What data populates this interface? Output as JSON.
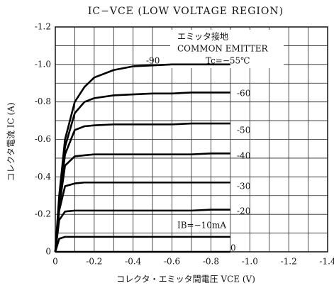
{
  "chart_data": {
    "type": "line",
    "title": "IC−VCE (LOW VOLTAGE REGION)",
    "x_label": "コレクタ・エミッタ間電圧 VCE (V)",
    "y_label": "コレクタ電流 IC (A)",
    "annotations": [
      "エミッタ接地",
      "COMMON EMITTER",
      "Tc=−55℃"
    ],
    "x": [
      0,
      -0.02,
      -0.05,
      -0.1,
      -0.15,
      -0.2,
      -0.3,
      -0.4,
      -0.5,
      -0.6,
      -0.7,
      -0.8,
      -0.9
    ],
    "series": [
      {
        "name": "-90",
        "color": "#000000",
        "values": [
          0,
          -0.3,
          -0.6,
          -0.8,
          -0.88,
          -0.93,
          -0.97,
          -0.99,
          -0.995,
          -1.0,
          -1.0,
          -1.0,
          -1.0
        ]
      },
      {
        "name": "-60",
        "color": "#000000",
        "values": [
          0,
          -0.28,
          -0.56,
          -0.74,
          -0.8,
          -0.82,
          -0.835,
          -0.84,
          -0.845,
          -0.845,
          -0.85,
          -0.85,
          -0.85
        ]
      },
      {
        "name": "-50",
        "color": "#000000",
        "values": [
          0,
          -0.26,
          -0.52,
          -0.65,
          -0.67,
          -0.675,
          -0.68,
          -0.68,
          -0.68,
          -0.68,
          -0.685,
          -0.685,
          -0.685
        ]
      },
      {
        "name": "-40",
        "color": "#000000",
        "values": [
          0,
          -0.24,
          -0.46,
          -0.51,
          -0.515,
          -0.52,
          -0.52,
          -0.52,
          -0.52,
          -0.52,
          -0.52,
          -0.525,
          -0.525
        ]
      },
      {
        "name": "-30",
        "color": "#000000",
        "values": [
          0,
          -0.22,
          -0.35,
          -0.365,
          -0.37,
          -0.37,
          -0.37,
          -0.37,
          -0.37,
          -0.37,
          -0.37,
          -0.37,
          -0.37
        ]
      },
      {
        "name": "-20",
        "color": "#000000",
        "values": [
          0,
          -0.17,
          -0.215,
          -0.22,
          -0.22,
          -0.22,
          -0.22,
          -0.22,
          -0.22,
          -0.22,
          -0.22,
          -0.225,
          -0.225
        ]
      },
      {
        "name": "IB=−10mA",
        "color": "#000000",
        "values": [
          0,
          -0.07,
          -0.08,
          -0.08,
          -0.08,
          -0.08,
          -0.08,
          -0.08,
          -0.08,
          -0.08,
          -0.08,
          -0.08,
          -0.08
        ]
      },
      {
        "name": "0",
        "color": "#000000",
        "values": [
          0,
          0,
          0,
          0,
          0,
          0,
          0,
          0,
          0,
          0,
          0,
          0,
          0
        ]
      }
    ],
    "xlim": [
      0,
      -1.4
    ],
    "xticks": [
      0,
      -0.2,
      -0.4,
      -0.6,
      -0.8,
      {
        "value": -1,
        "label": "-1.0"
      },
      -1.2,
      -1.4
    ],
    "ylim": [
      0,
      -1.2
    ],
    "yticks": [
      0,
      -0.2,
      -0.4,
      -0.6,
      -0.8,
      {
        "value": -1,
        "label": "-1.0"
      },
      -1.2
    ],
    "grid": true
  }
}
